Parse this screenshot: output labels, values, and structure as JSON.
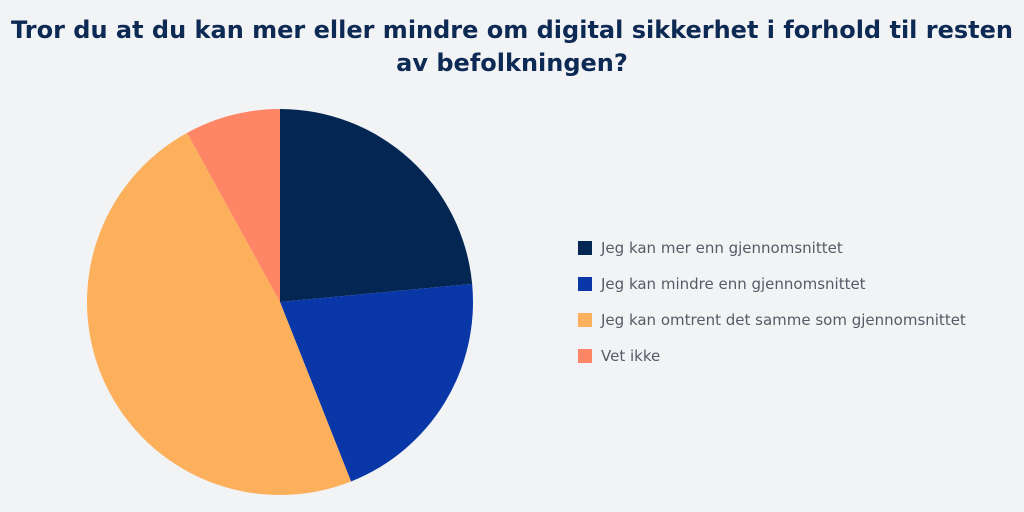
{
  "chart_data": {
    "type": "pie",
    "title": "Tror du at du kan mer eller mindre om digital sikkerhet i forhold til resten av befolkningen?",
    "categories": [
      "Jeg kan mer enn gjennomsnittet",
      "Jeg kan mindre enn gjennomsnittet",
      "Jeg kan omtrent det samme som gjennomsnittet",
      "Vet ikke"
    ],
    "values": [
      23.5,
      20.5,
      48,
      8
    ],
    "colors": [
      "#032752",
      "#0a37a8",
      "#fcb05c",
      "#fe8566"
    ],
    "start_angle_deg": 0,
    "direction": "clockwise",
    "legend_position": "right"
  }
}
